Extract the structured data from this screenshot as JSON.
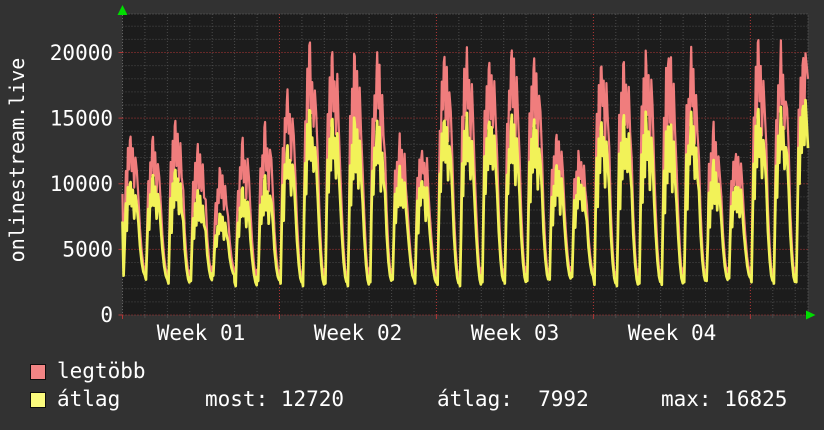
{
  "vertical_label": "onlinestream.live",
  "legend": [
    {
      "label": "legtöbb",
      "color": "#f28585"
    },
    {
      "label": "átlag",
      "color": "#fbfb7d"
    }
  ],
  "legend_stats": [
    "most: 12720",
    "átlag:  7992",
    "max: 16825"
  ],
  "colors": {
    "outer_bg": "#323232",
    "plot_bg": "#1c1c1c",
    "grid_minor": "#4a4a4a",
    "grid_major": "#b03636",
    "border": "#636363",
    "arrow_green": "#00dd00",
    "text": "#ffffff"
  },
  "chart_data": {
    "type": "line",
    "title": "",
    "vertical_label": "onlinestream.live",
    "x_ticks": [
      "Week 01",
      "Week 02",
      "Week 03",
      "Week 04"
    ],
    "y_tick_labels": [
      "0",
      "5000",
      "10000",
      "15000",
      "20000"
    ],
    "y_ticks": [
      0,
      5000,
      10000,
      15000,
      20000
    ],
    "y_range": [
      0,
      23000
    ],
    "grid": "dotted",
    "legend_position": "bottom-left",
    "total_days": 30.57,
    "days_per_week": 7,
    "stats": {
      "series": "átlag",
      "most": 12720,
      "atlag": 7992,
      "max": 16825
    },
    "series": [
      {
        "name": "legtöbb",
        "key": "r",
        "color": "#f07d7d",
        "width": 2.2
      },
      {
        "name": "átlag",
        "key": "a",
        "color": "#f2f258",
        "width": 2.7
      }
    ],
    "day_values": [
      {
        "r": 14000,
        "a": 10500,
        "low": 3000
      },
      {
        "r": 13300,
        "a": 10400,
        "low": 2700
      },
      {
        "r": 14500,
        "a": 11000,
        "low": 2400
      },
      {
        "r": 12600,
        "a": 9200,
        "low": 2600
      },
      {
        "r": 10900,
        "a": 7600,
        "low": 3000
      },
      {
        "r": 12900,
        "a": 9400,
        "low": 2200
      },
      {
        "r": 14300,
        "a": 10400,
        "low": 2600
      },
      {
        "r": 17500,
        "a": 13200,
        "low": 2400
      },
      {
        "r": 20350,
        "a": 15400,
        "low": 2200
      },
      {
        "r": 20300,
        "a": 15200,
        "low": 2400
      },
      {
        "r": 20000,
        "a": 15000,
        "low": 2200
      },
      {
        "r": 19600,
        "a": 14600,
        "low": 2500
      },
      {
        "r": 13200,
        "a": 11000,
        "low": 2700
      },
      {
        "r": 12900,
        "a": 10600,
        "low": 2400
      },
      {
        "r": 19900,
        "a": 15200,
        "low": 2300
      },
      {
        "r": 20100,
        "a": 15000,
        "low": 2200
      },
      {
        "r": 19800,
        "a": 15300,
        "low": 2500
      },
      {
        "r": 19900,
        "a": 14800,
        "low": 2400
      },
      {
        "r": 19700,
        "a": 14900,
        "low": 2600
      },
      {
        "r": 13600,
        "a": 11200,
        "low": 2700
      },
      {
        "r": 12300,
        "a": 10400,
        "low": 2900
      },
      {
        "r": 19800,
        "a": 15100,
        "low": 2300
      },
      {
        "r": 19600,
        "a": 15300,
        "low": 2200
      },
      {
        "r": 20000,
        "a": 15200,
        "low": 2400
      },
      {
        "r": 19700,
        "a": 14700,
        "low": 2300
      },
      {
        "r": 19500,
        "a": 15000,
        "low": 2500
      },
      {
        "r": 13900,
        "a": 11300,
        "low": 2600
      },
      {
        "r": 12600,
        "a": 10200,
        "low": 2800
      },
      {
        "r": 20600,
        "a": 15500,
        "low": 2500
      },
      {
        "r": 19900,
        "a": 15200,
        "low": 2400
      },
      {
        "r": 20300,
        "a": 16825,
        "low": 2500
      }
    ],
    "day_shape": [
      [
        0.0,
        0.04
      ],
      [
        0.05,
        0.0
      ],
      [
        0.1,
        0.38
      ],
      [
        0.15,
        0.72
      ],
      [
        0.19,
        0.5
      ],
      [
        0.24,
        0.88
      ],
      [
        0.29,
        0.68
      ],
      [
        0.33,
        0.96
      ],
      [
        0.36,
        1.0
      ],
      [
        0.41,
        0.74
      ],
      [
        0.46,
        0.92
      ],
      [
        0.52,
        0.62
      ],
      [
        0.58,
        0.86
      ],
      [
        0.64,
        0.7
      ],
      [
        0.71,
        0.52
      ],
      [
        0.78,
        0.3
      ],
      [
        0.86,
        0.13
      ],
      [
        0.93,
        0.04
      ],
      [
        0.985,
        0.01
      ]
    ]
  }
}
